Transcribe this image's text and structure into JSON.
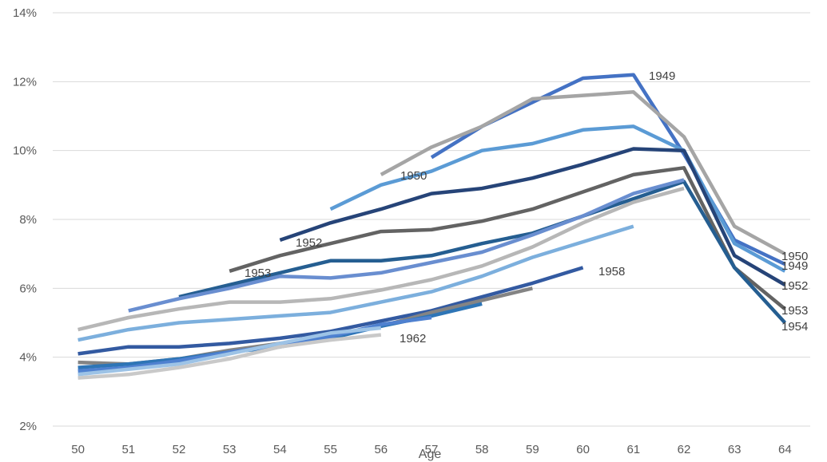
{
  "chart_data": {
    "type": "line",
    "xlabel": "Age",
    "ylabel": "",
    "title": "",
    "x": [
      50,
      51,
      52,
      53,
      54,
      55,
      56,
      57,
      58,
      59,
      60,
      61,
      62,
      63,
      64
    ],
    "y_ticks": [
      "2%",
      "4%",
      "6%",
      "8%",
      "10%",
      "12%",
      "14%"
    ],
    "ylim": [
      2,
      14
    ],
    "grid": "horizontal",
    "legend": "none (series labeled inline)",
    "series": [
      {
        "name": "1949",
        "color": "#4472c4",
        "values": [
          null,
          null,
          null,
          null,
          null,
          null,
          null,
          9.8,
          10.7,
          11.4,
          12.1,
          12.2,
          9.9,
          7.4,
          6.7
        ]
      },
      {
        "name": "1950",
        "color": "#a5a5a5",
        "values": [
          null,
          null,
          null,
          null,
          null,
          null,
          9.3,
          10.1,
          10.7,
          11.5,
          11.6,
          11.7,
          10.4,
          7.8,
          7.0
        ]
      },
      {
        "name": "",
        "color": "#5b9bd5",
        "values": [
          null,
          null,
          null,
          null,
          null,
          8.3,
          9.0,
          9.4,
          10.0,
          10.2,
          10.6,
          10.7,
          10.0,
          7.3,
          6.5
        ]
      },
      {
        "name": "1952",
        "color": "#264478",
        "values": [
          null,
          null,
          null,
          null,
          7.4,
          7.9,
          8.3,
          8.75,
          8.9,
          9.2,
          9.6,
          10.05,
          10.0,
          6.95,
          6.1
        ]
      },
      {
        "name": "1953",
        "color": "#636363",
        "values": [
          null,
          null,
          null,
          6.5,
          6.95,
          7.3,
          7.65,
          7.7,
          7.95,
          8.3,
          8.8,
          9.3,
          9.5,
          6.6,
          5.4
        ]
      },
      {
        "name": "1954",
        "color": "#255e91",
        "values": [
          null,
          null,
          5.75,
          6.1,
          6.45,
          6.8,
          6.8,
          6.95,
          7.3,
          7.6,
          8.1,
          8.6,
          9.1,
          6.6,
          5.0
        ]
      },
      {
        "name": "",
        "color": "#698ed0",
        "values": [
          null,
          5.35,
          5.7,
          6.0,
          6.35,
          6.3,
          6.45,
          6.75,
          7.05,
          7.55,
          8.1,
          8.75,
          9.15,
          null,
          null
        ]
      },
      {
        "name": "",
        "color": "#b7b7b7",
        "values": [
          4.8,
          5.15,
          5.4,
          5.6,
          5.6,
          5.7,
          5.95,
          6.25,
          6.65,
          7.2,
          7.9,
          8.5,
          8.9,
          null,
          null
        ]
      },
      {
        "name": "",
        "color": "#7cafdd",
        "values": [
          4.5,
          4.8,
          5.0,
          5.1,
          5.2,
          5.3,
          5.6,
          5.9,
          6.35,
          6.9,
          7.35,
          7.8,
          null,
          null,
          null
        ]
      },
      {
        "name": "1958",
        "color": "#335aa1",
        "values": [
          4.1,
          4.3,
          4.3,
          4.4,
          4.55,
          4.75,
          5.05,
          5.35,
          5.75,
          6.15,
          6.6,
          null,
          null,
          null,
          null
        ]
      },
      {
        "name": "",
        "color": "#848484",
        "values": [
          3.85,
          3.8,
          3.95,
          4.2,
          4.4,
          4.6,
          4.9,
          5.3,
          5.65,
          6.0,
          null,
          null,
          null,
          null,
          null
        ]
      },
      {
        "name": "",
        "color": "#2e75b6",
        "values": [
          3.7,
          3.8,
          3.95,
          4.15,
          4.3,
          4.55,
          4.9,
          5.2,
          5.55,
          null,
          null,
          null,
          null,
          null,
          null
        ]
      },
      {
        "name": "",
        "color": "#4f81d0",
        "values": [
          3.6,
          3.7,
          3.9,
          4.15,
          4.35,
          4.6,
          4.95,
          5.15,
          null,
          null,
          null,
          null,
          null,
          null,
          null
        ]
      },
      {
        "name": "",
        "color": "#9dc3e6",
        "values": [
          3.5,
          3.65,
          3.8,
          4.1,
          4.4,
          4.7,
          4.85,
          null,
          null,
          null,
          null,
          null,
          null,
          null,
          null
        ]
      },
      {
        "name": "1962",
        "color": "#c9c9c9",
        "values": [
          3.4,
          3.5,
          3.7,
          3.95,
          4.3,
          4.5,
          4.65,
          null,
          null,
          null,
          null,
          null,
          null,
          null,
          null
        ]
      }
    ],
    "annotations": [
      {
        "text": "1949"
      },
      {
        "text": "1950"
      },
      {
        "text": "1952"
      },
      {
        "text": "1953"
      },
      {
        "text": "1958"
      },
      {
        "text": "1962"
      },
      {
        "text": "1950"
      },
      {
        "text": "1949"
      },
      {
        "text": "1952"
      },
      {
        "text": "1953"
      },
      {
        "text": "1954"
      }
    ]
  }
}
